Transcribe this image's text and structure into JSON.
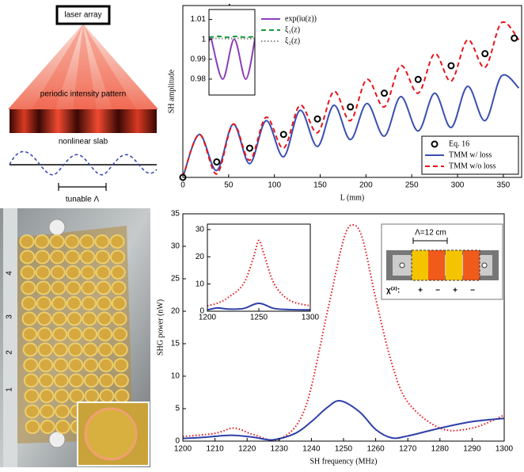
{
  "diagram": {
    "source_label": "laser array",
    "pattern_label": "periodic intensity pattern",
    "slab_label": "nonlinear slab",
    "period_label": "tunable Λ"
  },
  "photo": {
    "row_labels": [
      "1",
      "2",
      "3",
      "4"
    ]
  },
  "schematic": {
    "period_label": "Λ=12  cm",
    "chi_label": "χ⁽²⁾:",
    "signs": [
      "+",
      "−",
      "+",
      "−"
    ]
  },
  "chart_data": [
    {
      "type": "line",
      "xlabel": "L (mm)",
      "ylabel": "SH amplitude",
      "xlim": [
        0,
        370
      ],
      "ylim": [
        0,
        1
      ],
      "xticks": [
        0,
        50,
        100,
        150,
        200,
        250,
        300,
        350
      ],
      "legend": "lower right",
      "series": [
        {
          "name": "Eq. 16",
          "color": "#000000",
          "style": "circles",
          "x": [
            0,
            37,
            73,
            110,
            147,
            183,
            220,
            257,
            293,
            330,
            362
          ],
          "values": [
            0,
            0.09,
            0.17,
            0.25,
            0.34,
            0.41,
            0.49,
            0.57,
            0.65,
            0.72,
            0.81
          ]
        },
        {
          "name": "TMM w/ loss",
          "color": "#3a4fb0",
          "style": "solid",
          "x": [
            0,
            18,
            37,
            55,
            73,
            91,
            110,
            128,
            147,
            165,
            183,
            201,
            220,
            238,
            257,
            275,
            293,
            311,
            330,
            348,
            367
          ],
          "values": [
            0,
            0.25,
            0.04,
            0.31,
            0.08,
            0.33,
            0.12,
            0.39,
            0.18,
            0.42,
            0.22,
            0.43,
            0.24,
            0.47,
            0.27,
            0.49,
            0.29,
            0.53,
            0.33,
            0.59,
            0.52
          ]
        },
        {
          "name": "TMM w/o loss",
          "color": "#e8141c",
          "style": "dashed",
          "x": [
            0,
            18,
            37,
            55,
            73,
            91,
            110,
            128,
            147,
            165,
            183,
            201,
            220,
            238,
            257,
            275,
            293,
            311,
            330,
            348,
            367
          ],
          "values": [
            0,
            0.25,
            0.02,
            0.31,
            0.1,
            0.35,
            0.17,
            0.42,
            0.26,
            0.5,
            0.33,
            0.57,
            0.41,
            0.65,
            0.49,
            0.72,
            0.56,
            0.8,
            0.64,
            0.9,
            0.8
          ]
        }
      ]
    },
    {
      "type": "line",
      "xlim": [
        0,
        1
      ],
      "ylim": [
        0.972,
        1.015
      ],
      "yticks": [
        0.98,
        0.99,
        1,
        1.01
      ],
      "legend": "right",
      "series": [
        {
          "name": "exp(iu(z))",
          "color": "#8a3fb8",
          "style": "solid",
          "x": [
            0,
            0.05,
            0.3,
            0.55,
            0.8,
            1
          ],
          "values": [
            0.999,
            1,
            0.98,
            1,
            0.98,
            1
          ]
        },
        {
          "name": "ξ₁(z)",
          "color": "#1a9a3a",
          "style": "dashed",
          "x": [
            0,
            0.2,
            0.4,
            0.6,
            0.8,
            1
          ],
          "values": [
            1.001,
            1.0015,
            1.001,
            1.0015,
            1.001,
            1.0015
          ]
        },
        {
          "name": "ξ₂(z)",
          "color": "#888888",
          "style": "dotted",
          "x": [
            0,
            0.2,
            0.4,
            0.6,
            0.8,
            1
          ],
          "values": [
            1.0003,
            1.0005,
            1.0003,
            1.0005,
            1.0003,
            1.0005
          ]
        }
      ]
    },
    {
      "type": "line",
      "xlabel": "SH frequency (MHz)",
      "ylabel": "SHG power (nW)",
      "xlim": [
        1200,
        1300
      ],
      "ylim": [
        0,
        35
      ],
      "xticks": [
        1200,
        1210,
        1220,
        1230,
        1240,
        1250,
        1260,
        1270,
        1280,
        1290,
        1300
      ],
      "yticks": [
        0,
        5,
        10,
        15,
        20,
        25,
        30,
        35
      ],
      "series": [
        {
          "color": "#e8141c",
          "style": "dotted",
          "x": [
            1200,
            1210,
            1216,
            1222,
            1230,
            1238,
            1245,
            1250,
            1253,
            1256,
            1260,
            1265,
            1270,
            1280,
            1290,
            1300
          ],
          "values": [
            0.7,
            1.2,
            2,
            1,
            0.3,
            5,
            20,
            31,
            33.3,
            31,
            22,
            12,
            6,
            2,
            2,
            4
          ]
        },
        {
          "color": "#2d3fa8",
          "style": "solid",
          "x": [
            1200,
            1207,
            1215,
            1222,
            1228,
            1235,
            1240,
            1245,
            1249,
            1255,
            1260,
            1265,
            1270,
            1280,
            1290,
            1300
          ],
          "values": [
            0.4,
            0.6,
            0.9,
            0.6,
            0.2,
            1.2,
            3,
            5.2,
            6.2,
            4.5,
            1.8,
            0.5,
            0.8,
            2,
            3,
            3.5
          ]
        }
      ]
    },
    {
      "type": "line",
      "xlim": [
        1200,
        1300
      ],
      "ylim": [
        0,
        32
      ],
      "xticks": [
        1200,
        1250,
        1300
      ],
      "yticks": [
        0,
        10,
        20,
        30
      ],
      "series": [
        {
          "color": "#e8141c",
          "style": "dotted",
          "x": [
            1200,
            1210,
            1220,
            1235,
            1245,
            1250,
            1255,
            1265,
            1280,
            1300
          ],
          "values": [
            2,
            3,
            5,
            10,
            20,
            26,
            21,
            10,
            4,
            2
          ]
        },
        {
          "color": "#2d3fa8",
          "style": "solid",
          "x": [
            1200,
            1210,
            1220,
            1235,
            1245,
            1250,
            1255,
            1265,
            1280,
            1300
          ],
          "values": [
            0.5,
            1.2,
            0.8,
            1,
            2.5,
            2.9,
            2.5,
            1,
            0.6,
            0.5
          ]
        }
      ]
    }
  ]
}
